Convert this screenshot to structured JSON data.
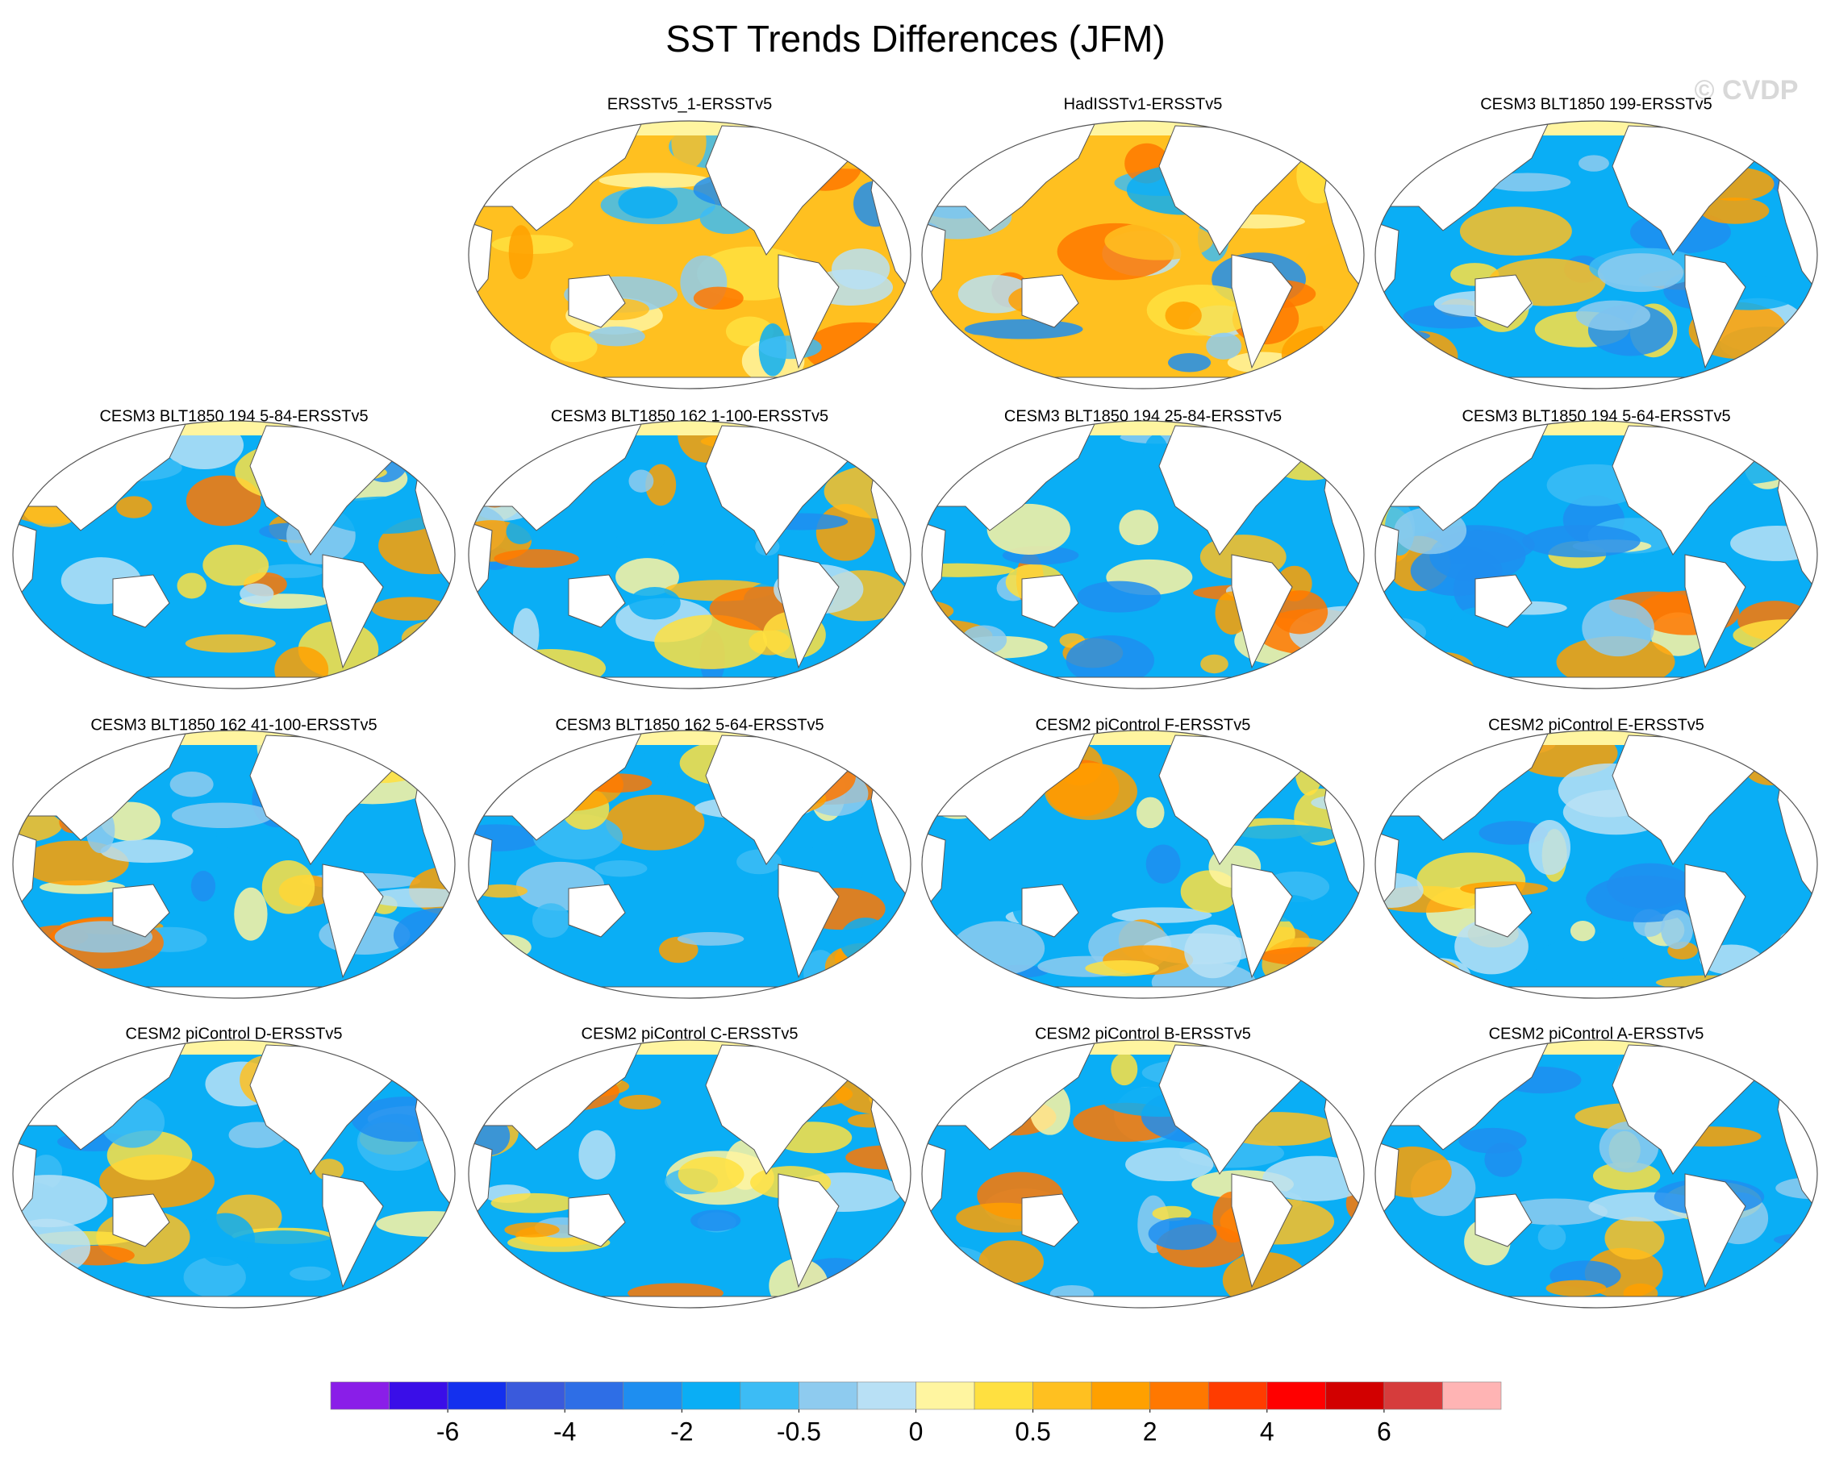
{
  "title": "SST Trends Differences (JFM)",
  "watermark": "© CVDP",
  "panels": [
    [
      null,
      "ERSSTv5_1-ERSSTv5",
      "HadISSTv1-ERSSTv5",
      "CESM3 BLT1850 199-ERSSTv5"
    ],
    [
      "CESM3 BLT1850 194 5-84-ERSSTv5",
      "CESM3 BLT1850 162 1-100-ERSSTv5",
      "CESM3 BLT1850 194 25-84-ERSSTv5",
      "CESM3 BLT1850 194 5-64-ERSSTv5"
    ],
    [
      "CESM3 BLT1850 162 41-100-ERSSTv5",
      "CESM3 BLT1850 162 5-64-ERSSTv5",
      "CESM2 piControl F-ERSSTv5",
      "CESM2 piControl E-ERSSTv5"
    ],
    [
      "CESM2 piControl D-ERSSTv5",
      "CESM2 piControl C-ERSSTv5",
      "CESM2 piControl B-ERSSTv5",
      "CESM2 piControl A-ERSSTv5"
    ]
  ],
  "colorbar": {
    "colors": [
      "#8a1ee8",
      "#3a0ee8",
      "#1430ee",
      "#3a5adc",
      "#2e6ee6",
      "#1e8ef0",
      "#0aaef5",
      "#3cbcf5",
      "#8ecbef",
      "#b8e0f5",
      "#fff5a0",
      "#ffe040",
      "#ffc020",
      "#ffa000",
      "#ff7800",
      "#ff3c00",
      "#ff0000",
      "#d20000",
      "#d63c3c",
      "#ffb4b4"
    ],
    "ticks": [
      -6,
      -4,
      -2,
      -0.5,
      0,
      0.5,
      2,
      4,
      6
    ]
  }
}
